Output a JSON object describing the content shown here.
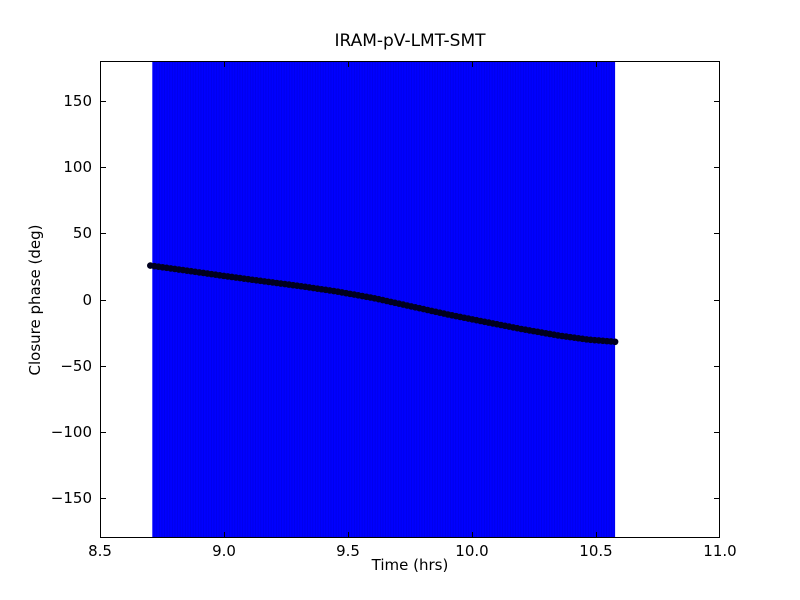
{
  "figure": {
    "title": "IRAM-pV-LMT-SMT",
    "xlabel": "Time (hrs)",
    "ylabel": "Closure phase (deg)",
    "background_color": "#ffffff",
    "frame_color": "#000000"
  },
  "chart_data": {
    "type": "scatter",
    "title": "IRAM-pV-LMT-SMT",
    "xlabel": "Time (hrs)",
    "ylabel": "Closure phase (deg)",
    "xlim": [
      8.5,
      11.0
    ],
    "ylim": [
      -180,
      180
    ],
    "xticks": [
      8.5,
      9.0,
      9.5,
      10.0,
      10.5,
      11.0
    ],
    "xtick_labels": [
      "8.5",
      "9.0",
      "9.5",
      "10.0",
      "10.5",
      "11.0"
    ],
    "yticks": [
      -150,
      -100,
      -50,
      0,
      50,
      100,
      150
    ],
    "ytick_labels": [
      "−150",
      "−100",
      "−50",
      "0",
      "50",
      "100",
      "150"
    ],
    "grid": false,
    "legend": null,
    "series": [
      {
        "name": "closure-phase",
        "marker": "circle",
        "marker_color": "#00001e",
        "marker_radius_px": 3.3,
        "n_markers": 115,
        "anchors_t_phi": [
          [
            8.703,
            25.6
          ],
          [
            8.85,
            21.8
          ],
          [
            9.0,
            17.8
          ],
          [
            9.15,
            14.0
          ],
          [
            9.3,
            10.3
          ],
          [
            9.45,
            6.2
          ],
          [
            9.6,
            1.2
          ],
          [
            9.75,
            -5.0
          ],
          [
            9.9,
            -11.2
          ],
          [
            10.05,
            -16.8
          ],
          [
            10.2,
            -22.3
          ],
          [
            10.35,
            -27.2
          ],
          [
            10.47,
            -30.3
          ],
          [
            10.577,
            -31.9
          ]
        ]
      }
    ],
    "error_band": {
      "color": "#0000ff",
      "stripe_color": "#0000cc",
      "t_range": [
        8.711,
        10.577
      ],
      "phi_range": [
        -180,
        180
      ]
    }
  }
}
